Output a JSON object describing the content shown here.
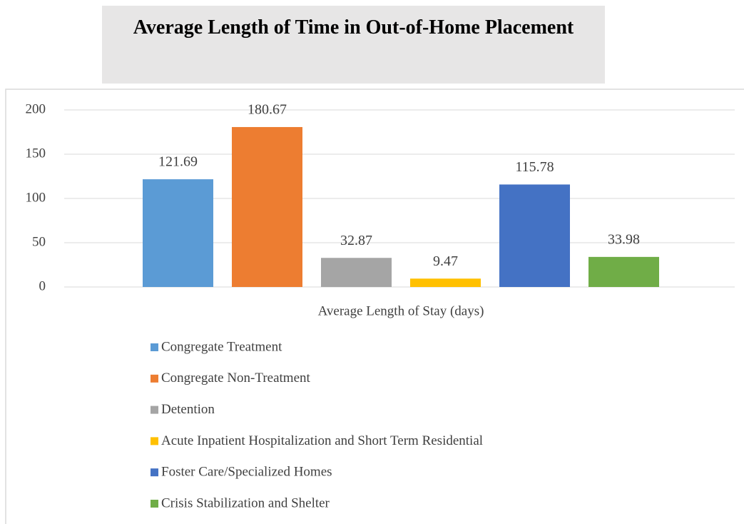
{
  "chart_data": {
    "type": "bar",
    "title": "Average Length of Time in Out-of-Home Placement",
    "categories": [
      "Average Length of Stay (days)"
    ],
    "series": [
      {
        "name": "Congregate Treatment",
        "color": "#5b9bd5",
        "values": [
          121.69
        ]
      },
      {
        "name": "Congregate Non-Treatment",
        "color": "#ed7d31",
        "values": [
          180.67
        ]
      },
      {
        "name": "Detention",
        "color": "#a5a5a5",
        "values": [
          32.87
        ]
      },
      {
        "name": "Acute Inpatient Hospitalization and Short Term Residential",
        "color": "#ffc000",
        "values": [
          9.47
        ]
      },
      {
        "name": "Foster Care/Specialized Homes",
        "color": "#4472c4",
        "values": [
          115.78
        ]
      },
      {
        "name": "Crisis Stabilization and Shelter",
        "color": "#70ad47",
        "values": [
          33.98
        ]
      }
    ],
    "ylim": [
      0,
      200
    ],
    "yticks": [
      0,
      50,
      100,
      150,
      200
    ],
    "grid": true,
    "legend": "bottom"
  }
}
